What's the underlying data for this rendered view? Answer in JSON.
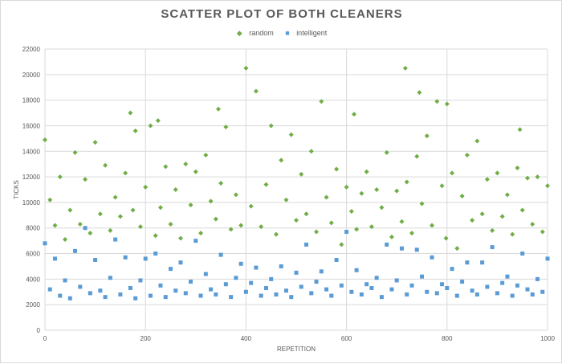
{
  "chart_data": {
    "type": "scatter",
    "title": "SCATTER PLOT OF BOTH CLEANERS",
    "xlabel": "REPETITION",
    "ylabel": "TICKS",
    "xlim": [
      0,
      1000
    ],
    "ylim": [
      0,
      22000
    ],
    "xticks": [
      0,
      200,
      400,
      600,
      800,
      1000
    ],
    "yticks": [
      0,
      2000,
      4000,
      6000,
      8000,
      10000,
      12000,
      14000,
      16000,
      18000,
      20000,
      22000
    ],
    "grid": true,
    "legend": "top",
    "series": [
      {
        "name": "random",
        "color": "#70ad47",
        "marker": "diamond",
        "x": [
          0,
          10,
          20,
          30,
          40,
          50,
          60,
          70,
          80,
          90,
          100,
          110,
          120,
          130,
          140,
          150,
          160,
          170,
          175,
          180,
          190,
          200,
          210,
          220,
          225,
          230,
          240,
          250,
          260,
          270,
          280,
          290,
          300,
          310,
          320,
          330,
          340,
          345,
          350,
          360,
          370,
          380,
          390,
          400,
          410,
          420,
          430,
          440,
          450,
          460,
          470,
          480,
          490,
          500,
          510,
          520,
          530,
          540,
          550,
          560,
          570,
          580,
          590,
          600,
          610,
          615,
          620,
          630,
          640,
          650,
          660,
          670,
          680,
          690,
          700,
          710,
          717,
          720,
          730,
          740,
          745,
          750,
          760,
          770,
          780,
          790,
          798,
          800,
          810,
          820,
          830,
          840,
          850,
          860,
          870,
          880,
          890,
          900,
          910,
          920,
          930,
          940,
          945,
          950,
          960,
          970,
          980,
          990,
          1000
        ],
        "y": [
          14900,
          10200,
          8200,
          12000,
          7100,
          9400,
          13900,
          8300,
          11800,
          7600,
          14700,
          9100,
          12900,
          7800,
          10400,
          8900,
          12300,
          17000,
          9400,
          15600,
          8100,
          11200,
          16000,
          7400,
          16400,
          9600,
          12800,
          8300,
          11000,
          7200,
          13000,
          9800,
          12400,
          7600,
          13700,
          10100,
          8700,
          17300,
          11500,
          15900,
          7900,
          10600,
          8200,
          20500,
          9700,
          18700,
          8100,
          11400,
          16000,
          7500,
          13300,
          10200,
          15300,
          8600,
          12200,
          9100,
          14000,
          7700,
          17900,
          10400,
          8400,
          12600,
          6700,
          11200,
          9300,
          16900,
          7900,
          10700,
          12400,
          8100,
          11000,
          9600,
          13900,
          7300,
          10900,
          8500,
          20500,
          11600,
          7600,
          13600,
          18600,
          9900,
          15200,
          8200,
          17900,
          11300,
          7200,
          17700,
          12300,
          6400,
          10500,
          13700,
          8600,
          14800,
          9100,
          11800,
          7800,
          12300,
          8900,
          10600,
          7500,
          12700,
          15700,
          9400,
          11900,
          8300,
          12000,
          7700,
          11300
        ]
      },
      {
        "name": "intelligent",
        "color": "#5b9bd5",
        "marker": "square",
        "x": [
          0,
          10,
          20,
          30,
          40,
          50,
          60,
          70,
          80,
          90,
          100,
          110,
          120,
          130,
          140,
          150,
          160,
          170,
          180,
          190,
          200,
          210,
          220,
          230,
          240,
          250,
          260,
          270,
          280,
          290,
          300,
          310,
          320,
          330,
          340,
          350,
          360,
          370,
          380,
          390,
          400,
          410,
          420,
          430,
          440,
          450,
          460,
          470,
          480,
          490,
          500,
          510,
          520,
          530,
          540,
          550,
          560,
          570,
          580,
          590,
          600,
          610,
          620,
          630,
          640,
          650,
          660,
          670,
          680,
          690,
          700,
          710,
          720,
          730,
          740,
          750,
          760,
          770,
          780,
          790,
          800,
          810,
          820,
          830,
          840,
          850,
          860,
          870,
          880,
          890,
          900,
          910,
          920,
          930,
          940,
          950,
          960,
          970,
          980,
          990,
          1000
        ],
        "y": [
          6800,
          3200,
          5600,
          2700,
          3900,
          2500,
          6200,
          3400,
          8000,
          2900,
          5500,
          3100,
          2600,
          4100,
          7100,
          2800,
          5700,
          3300,
          2500,
          3900,
          5600,
          2700,
          6000,
          3500,
          2600,
          4800,
          3100,
          5300,
          2900,
          3800,
          7000,
          2700,
          4400,
          3200,
          2800,
          5900,
          3600,
          2600,
          4100,
          5200,
          3000,
          3700,
          4900,
          2700,
          3300,
          4000,
          2800,
          5000,
          3100,
          2600,
          4500,
          3400,
          6700,
          2900,
          3800,
          4600,
          3200,
          2700,
          5500,
          3500,
          7700,
          3000,
          4700,
          2800,
          3600,
          3300,
          4100,
          2600,
          6700,
          3200,
          3900,
          6400,
          2800,
          3500,
          6300,
          4200,
          3000,
          5700,
          2900,
          3600,
          3300,
          4800,
          2700,
          3800,
          5300,
          3100,
          2800,
          5300,
          3400,
          6500,
          2900,
          3700,
          4200,
          2700,
          3500,
          6000,
          3200,
          2800,
          4000,
          3000,
          5600
        ]
      }
    ]
  }
}
